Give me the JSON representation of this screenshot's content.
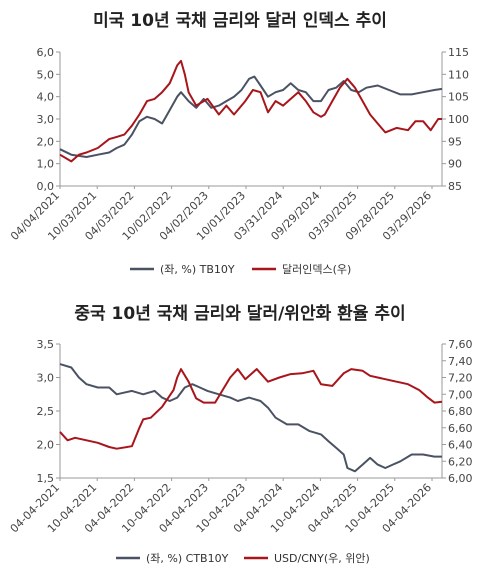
{
  "colors": {
    "navy": "#4a5263",
    "red": "#a8151b",
    "axis": "#9a9a9a"
  },
  "chart_data": [
    {
      "type": "line",
      "title": "미국 10년 국채 금리와 달러 인덱스 추이",
      "ylim_left": [
        0,
        6
      ],
      "yticks_left": [
        "0,0",
        "1,0",
        "2,0",
        "3,0",
        "4,0",
        "5,0",
        "6,0"
      ],
      "ylim_right": [
        85,
        115
      ],
      "yticks_right": [
        "85",
        "90",
        "95",
        "100",
        "105",
        "110",
        "115"
      ],
      "x_range": [
        2021.25,
        2026.3
      ],
      "xtick_labels": [
        "04/04/2021",
        "10/03/2021",
        "04/03/2022",
        "10/02/2022",
        "04/02/2023",
        "10/01/2023",
        "03/31/2024",
        "09/29/2024",
        "03/30/2025",
        "09/28/2025",
        "03/29/2026"
      ],
      "legend": [
        "(좌, %) TB10Y",
        "달러인덱스(우)"
      ],
      "legend_position": "bottom",
      "grid": false,
      "series": [
        {
          "name": "(좌, %) TB10Y",
          "axis": "left",
          "x": [
            2021.25,
            2021.4,
            2021.6,
            2021.75,
            2021.9,
            2022.0,
            2022.1,
            2022.2,
            2022.3,
            2022.4,
            2022.5,
            2022.6,
            2022.7,
            2022.8,
            2022.85,
            2022.95,
            2023.05,
            2023.15,
            2023.25,
            2023.35,
            2023.45,
            2023.55,
            2023.65,
            2023.75,
            2023.82,
            2023.9,
            2024.0,
            2024.1,
            2024.2,
            2024.3,
            2024.4,
            2024.5,
            2024.6,
            2024.7,
            2024.8,
            2024.9,
            2025.0,
            2025.1,
            2025.2,
            2025.3,
            2025.45,
            2025.6,
            2025.75,
            2025.9,
            2026.05,
            2026.2,
            2026.3
          ],
          "values": [
            1.65,
            1.4,
            1.3,
            1.4,
            1.5,
            1.7,
            1.85,
            2.3,
            2.9,
            3.1,
            3.0,
            2.8,
            3.4,
            4.0,
            4.2,
            3.8,
            3.5,
            3.9,
            3.5,
            3.6,
            3.8,
            4.0,
            4.3,
            4.8,
            4.9,
            4.5,
            4.0,
            4.2,
            4.3,
            4.6,
            4.3,
            4.2,
            3.8,
            3.8,
            4.3,
            4.4,
            4.7,
            4.3,
            4.2,
            4.4,
            4.5,
            4.3,
            4.1,
            4.1,
            4.2,
            4.3,
            4.35
          ]
        },
        {
          "name": "달러인덱스(우)",
          "axis": "right",
          "x": [
            2021.25,
            2021.4,
            2021.5,
            2021.6,
            2021.75,
            2021.9,
            2022.0,
            2022.1,
            2022.2,
            2022.3,
            2022.4,
            2022.5,
            2022.6,
            2022.7,
            2022.75,
            2022.8,
            2022.85,
            2022.9,
            2022.95,
            2023.05,
            2023.2,
            2023.35,
            2023.45,
            2023.55,
            2023.7,
            2023.8,
            2023.9,
            2024.0,
            2024.1,
            2024.2,
            2024.3,
            2024.4,
            2024.5,
            2024.6,
            2024.7,
            2024.75,
            2024.85,
            2024.95,
            2025.05,
            2025.15,
            2025.25,
            2025.35,
            2025.45,
            2025.55,
            2025.7,
            2025.85,
            2025.95,
            2026.05,
            2026.15,
            2026.25,
            2026.3
          ],
          "values": [
            92,
            90.5,
            92,
            92.5,
            93.5,
            95.5,
            96,
            96.5,
            98.5,
            101,
            104,
            104.5,
            106,
            108,
            110,
            112,
            113,
            110,
            106,
            103,
            104.5,
            101,
            103,
            101,
            104,
            106.5,
            106,
            101.5,
            104,
            103,
            104.5,
            106,
            104,
            101.5,
            100.5,
            101,
            104,
            107,
            109,
            107,
            104,
            101,
            99,
            97,
            98,
            97.5,
            99.5,
            99.5,
            97.5,
            100,
            100
          ]
        }
      ]
    },
    {
      "type": "line",
      "title": "중국 10년 국채 금리와 달러/위안화 환율 추이",
      "ylim_left": [
        1.5,
        3.5
      ],
      "yticks_left": [
        "1,5",
        "2,0",
        "2,5",
        "3,0",
        "3,5"
      ],
      "ylim_right": [
        6.0,
        7.6
      ],
      "yticks_right": [
        "6,00",
        "6,20",
        "6,40",
        "6,60",
        "6,80",
        "7,00",
        "7,20",
        "7,40",
        "7,60"
      ],
      "x_range": [
        2021.25,
        2026.3
      ],
      "xtick_labels": [
        "04-04-2021",
        "10-04-2021",
        "04-04-2022",
        "10-04-2022",
        "04-04-2023",
        "10-04-2023",
        "04-04-2024",
        "10-04-2024",
        "04-04-2025",
        "10-04-2025",
        "04-04-2026"
      ],
      "legend": [
        "(좌, %) CTB10Y",
        "USD/CNY(우, 위안)"
      ],
      "legend_position": "bottom",
      "grid": false,
      "series": [
        {
          "name": "(좌, %) CTB10Y",
          "axis": "left",
          "x": [
            2021.25,
            2021.4,
            2021.5,
            2021.6,
            2021.75,
            2021.9,
            2022.0,
            2022.2,
            2022.35,
            2022.5,
            2022.6,
            2022.7,
            2022.8,
            2022.9,
            2023.0,
            2023.1,
            2023.2,
            2023.35,
            2023.5,
            2023.6,
            2023.75,
            2023.9,
            2024.0,
            2024.1,
            2024.25,
            2024.4,
            2024.55,
            2024.7,
            2024.8,
            2024.9,
            2025.0,
            2025.05,
            2025.15,
            2025.25,
            2025.35,
            2025.45,
            2025.55,
            2025.65,
            2025.75,
            2025.9,
            2026.05,
            2026.2,
            2026.3
          ],
          "values": [
            3.2,
            3.15,
            3.0,
            2.9,
            2.85,
            2.85,
            2.75,
            2.8,
            2.75,
            2.8,
            2.7,
            2.65,
            2.7,
            2.85,
            2.9,
            2.85,
            2.8,
            2.75,
            2.7,
            2.65,
            2.7,
            2.65,
            2.55,
            2.4,
            2.3,
            2.3,
            2.2,
            2.15,
            2.05,
            1.95,
            1.85,
            1.65,
            1.6,
            1.7,
            1.8,
            1.7,
            1.65,
            1.7,
            1.75,
            1.85,
            1.85,
            1.82,
            1.82
          ]
        },
        {
          "name": "USD/CNY(우, 위안)",
          "axis": "right",
          "x": [
            2021.25,
            2021.35,
            2021.45,
            2021.6,
            2021.75,
            2021.9,
            2022.0,
            2022.2,
            2022.3,
            2022.35,
            2022.45,
            2022.6,
            2022.75,
            2022.8,
            2022.85,
            2022.95,
            2023.05,
            2023.15,
            2023.3,
            2023.4,
            2023.5,
            2023.6,
            2023.7,
            2023.85,
            2024.0,
            2024.15,
            2024.3,
            2024.45,
            2024.6,
            2024.7,
            2024.85,
            2025.0,
            2025.1,
            2025.25,
            2025.35,
            2025.45,
            2025.55,
            2025.7,
            2025.85,
            2026.0,
            2026.1,
            2026.2,
            2026.3
          ],
          "values": [
            6.55,
            6.45,
            6.48,
            6.45,
            6.42,
            6.37,
            6.35,
            6.38,
            6.6,
            6.7,
            6.72,
            6.85,
            7.05,
            7.2,
            7.3,
            7.15,
            6.95,
            6.9,
            6.9,
            7.05,
            7.2,
            7.3,
            7.18,
            7.3,
            7.15,
            7.2,
            7.24,
            7.25,
            7.28,
            7.12,
            7.1,
            7.25,
            7.3,
            7.28,
            7.22,
            7.2,
            7.18,
            7.15,
            7.12,
            7.05,
            6.97,
            6.9,
            6.91
          ]
        }
      ]
    }
  ]
}
